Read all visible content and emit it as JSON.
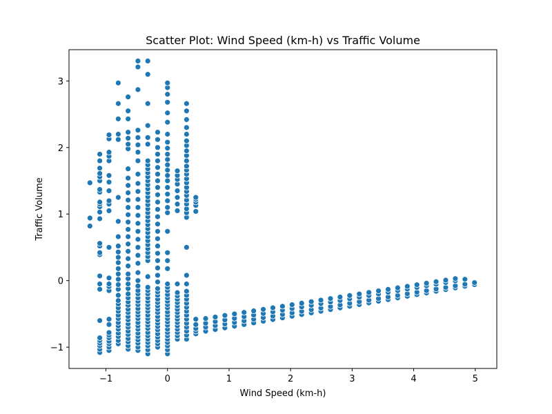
{
  "chart_data": {
    "type": "scatter",
    "title": "Scatter Plot: Wind Speed (km-h) vs Traffic Volume",
    "xlabel": "Wind Speed (km-h)",
    "ylabel": "Traffic Volume",
    "xlim": [
      -1.6,
      5.35
    ],
    "ylim": [
      -1.32,
      3.47
    ],
    "xticks": [
      -1,
      0,
      1,
      2,
      3,
      4,
      5
    ],
    "yticks": [
      -1,
      0,
      1,
      2,
      3
    ],
    "xtick_labels": [
      "−1",
      "0",
      "1",
      "2",
      "3",
      "4",
      "5"
    ],
    "ytick_labels": [
      "−1",
      "0",
      "1",
      "2",
      "3"
    ],
    "grid": false,
    "legend": "none",
    "marker_color": "#1f77b4",
    "marker_edge_color": "#ffffff",
    "columns": [
      {
        "x": -1.26,
        "y": [
          0.82,
          0.94,
          1.47
        ]
      },
      {
        "x": -1.1,
        "y": [
          -1.08,
          -1.03,
          -0.98,
          -0.94,
          -0.9,
          -0.86,
          -0.6,
          -0.13,
          -0.05,
          0.07,
          0.39,
          0.42,
          0.52,
          0.56,
          0.93,
          1.03,
          1.11,
          1.15,
          1.18,
          1.33,
          1.37,
          1.5,
          1.56,
          1.61,
          1.69,
          1.8,
          1.9
        ]
      },
      {
        "x": -0.95,
        "y": [
          -1.05,
          -1.0,
          -0.95,
          -0.91,
          -0.86,
          -0.82,
          -0.78,
          -0.66,
          -0.58,
          -0.15,
          -0.09,
          -0.05,
          0.04,
          0.5,
          1.05,
          1.15,
          1.2,
          1.35,
          1.48,
          1.58,
          1.8,
          1.87,
          1.93,
          2.13,
          2.19
        ]
      },
      {
        "x": -0.8,
        "y": [
          -0.95,
          -0.9,
          -0.84,
          -0.79,
          -0.73,
          -0.68,
          -0.63,
          -0.57,
          -0.52,
          -0.46,
          -0.41,
          -0.35,
          -0.3,
          -0.22,
          -0.13,
          -0.06,
          0.02,
          0.1,
          0.18,
          0.27,
          0.35,
          0.43,
          0.52,
          0.66,
          0.89,
          1.25,
          2.12,
          2.2,
          2.43,
          2.66,
          2.97
        ]
      },
      {
        "x": -0.64,
        "y": [
          -1.03,
          -0.98,
          -0.92,
          -0.87,
          -0.81,
          -0.76,
          -0.7,
          -0.65,
          -0.59,
          -0.54,
          -0.48,
          -0.43,
          -0.37,
          -0.32,
          -0.26,
          -0.2,
          -0.12,
          -0.05,
          0.03,
          0.1,
          0.22,
          0.33,
          0.44,
          0.55,
          0.66,
          0.77,
          0.88,
          0.99,
          1.1,
          1.21,
          1.32,
          1.43,
          1.54,
          1.68,
          1.98,
          2.05,
          2.14,
          2.23,
          2.43,
          2.55,
          2.76
        ]
      },
      {
        "x": -0.48,
        "y": [
          -1.05,
          -1.0,
          -0.94,
          -0.89,
          -0.84,
          -0.79,
          -0.73,
          -0.68,
          -0.63,
          -0.57,
          -0.52,
          -0.47,
          -0.42,
          -0.36,
          -0.31,
          -0.26,
          -0.2,
          -0.15,
          -0.08,
          0.0,
          0.12,
          0.26,
          0.38,
          0.5,
          0.62,
          0.74,
          0.86,
          0.98,
          1.1,
          1.22,
          1.34,
          1.46,
          1.6,
          1.8,
          1.93,
          2.04,
          2.15,
          2.26,
          2.87,
          3.21,
          3.3
        ]
      },
      {
        "x": -0.32,
        "y": [
          -1.1,
          -1.04,
          -0.98,
          -0.93,
          -0.88,
          -0.83,
          -0.78,
          -0.72,
          -0.67,
          -0.62,
          -0.57,
          -0.52,
          -0.46,
          -0.41,
          -0.36,
          -0.31,
          -0.26,
          -0.2,
          -0.15,
          -0.1,
          0.06,
          0.3,
          0.36,
          0.42,
          0.48,
          0.54,
          0.6,
          0.66,
          0.72,
          0.78,
          0.84,
          0.9,
          0.96,
          1.02,
          1.08,
          1.14,
          1.2,
          1.26,
          1.32,
          1.38,
          1.44,
          1.5,
          1.56,
          1.62,
          1.68,
          1.74,
          1.8,
          2.05,
          2.15,
          2.33,
          2.66,
          3.1,
          3.3
        ]
      },
      {
        "x": -0.16,
        "y": [
          -1.0,
          -0.95,
          -0.9,
          -0.85,
          -0.8,
          -0.74,
          -0.69,
          -0.64,
          -0.59,
          -0.54,
          -0.48,
          -0.43,
          -0.38,
          -0.33,
          -0.28,
          -0.22,
          -0.17,
          -0.12,
          -0.02,
          0.08,
          0.19,
          0.3,
          0.41,
          0.52,
          0.63,
          0.74,
          0.85,
          0.96,
          1.07,
          1.18,
          1.29,
          1.4,
          1.5,
          1.6,
          1.7,
          1.8,
          1.9,
          2.0,
          2.12,
          2.23
        ]
      },
      {
        "x": 0.0,
        "y": [
          -1.1,
          -1.04,
          -0.98,
          -0.93,
          -0.88,
          -0.83,
          -0.78,
          -0.73,
          -0.67,
          -0.62,
          -0.57,
          -0.52,
          -0.47,
          -0.41,
          -0.36,
          -0.31,
          -0.26,
          -0.21,
          -0.15,
          -0.1,
          -0.05,
          0.18,
          0.3,
          0.42,
          0.74,
          1.02,
          1.1,
          1.2,
          1.3,
          1.4,
          1.5,
          1.58,
          1.66,
          1.74,
          1.82,
          1.9,
          1.99,
          2.08,
          2.2,
          2.38,
          2.52,
          2.68,
          2.8,
          2.9,
          2.97
        ]
      },
      {
        "x": 0.16,
        "y": [
          -0.88,
          -0.83,
          -0.78,
          -0.73,
          -0.68,
          -0.63,
          -0.58,
          -0.53,
          -0.48,
          -0.43,
          -0.38,
          -0.33,
          -0.28,
          -0.23,
          -0.18,
          -0.05,
          1.05,
          1.15,
          1.25,
          1.35,
          1.45,
          1.52,
          1.58,
          1.65
        ]
      },
      {
        "x": 0.31,
        "y": [
          -0.88,
          -0.82,
          -0.76,
          -0.7,
          -0.64,
          -0.58,
          -0.52,
          -0.46,
          -0.4,
          -0.34,
          -0.28,
          -0.22,
          -0.16,
          -0.05,
          0.08,
          0.5,
          0.95,
          1.02,
          1.08,
          1.15,
          1.21,
          1.28,
          1.34,
          1.4,
          1.47,
          1.53,
          1.6,
          1.66,
          1.72,
          1.8,
          1.88,
          1.95,
          2.03,
          2.1,
          2.2,
          2.3,
          2.42,
          2.55,
          2.66
        ]
      },
      {
        "x": 0.46,
        "y": [
          -0.8,
          -0.76,
          -0.72,
          -0.66,
          -0.58,
          1.04,
          1.13,
          1.18,
          1.22,
          1.25
        ]
      }
    ],
    "trend_bands": [
      {
        "x_start": 0.62,
        "x_end": 5.02,
        "step": 0.156,
        "y_start": -0.76,
        "y_end": -0.06
      },
      {
        "x_start": 0.62,
        "x_end": 5.02,
        "step": 0.156,
        "y_start": -0.7,
        "y_end": -0.03
      },
      {
        "x_start": 0.62,
        "x_end": 4.86,
        "step": 0.156,
        "y_start": -0.64,
        "y_end": 0.02
      },
      {
        "x_start": 0.62,
        "x_end": 4.72,
        "step": 0.156,
        "y_start": -0.57,
        "y_end": 0.03
      }
    ]
  }
}
